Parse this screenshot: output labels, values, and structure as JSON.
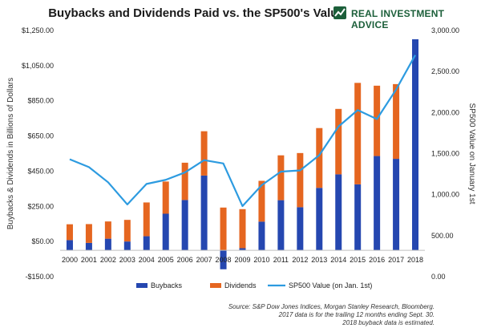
{
  "header": {
    "title": "Buybacks and Dividends Paid vs. the SP500's Value",
    "brand": "REAL INVESTMENT ADVICE",
    "brand_color": "#1c5f3a"
  },
  "source": {
    "line1": "Source: S&P Dow Jones Indices, Morgan Stanley Research, Bloomberg.",
    "line2": "2017 data is for the trailing 12 months ending Sept. 30.",
    "line3": "2018 buyback data is estimated."
  },
  "chart_data": {
    "type": "bar",
    "stacked": true,
    "categories": [
      "2000",
      "2001",
      "2002",
      "2003",
      "2004",
      "2005",
      "2006",
      "2007",
      "2008",
      "2009",
      "2010",
      "2011",
      "2012",
      "2013",
      "2014",
      "2015",
      "2016",
      "2017",
      "2018"
    ],
    "series": [
      {
        "name": "Buybacks",
        "color": "#2547b0",
        "values": [
          58,
          42,
          66,
          50,
          80,
          208,
          286,
          425,
          -108,
          12,
          163,
          285,
          245,
          355,
          432,
          375,
          536,
          520,
          1200
        ]
      },
      {
        "name": "Dividends",
        "color": "#e56620",
        "values": [
          90,
          107,
          98,
          123,
          192,
          183,
          212,
          252,
          243,
          222,
          232,
          255,
          308,
          340,
          372,
          577,
          400,
          425,
          0
        ]
      },
      {
        "name": "SP500 Value (on Jan. 1st)",
        "color": "#2d9be0",
        "axis": "right",
        "type": "line",
        "values": [
          1430,
          1335,
          1150,
          880,
          1130,
          1180,
          1270,
          1420,
          1380,
          860,
          1115,
          1280,
          1295,
          1480,
          1830,
          2030,
          1920,
          2280,
          2700
        ]
      }
    ],
    "ylabel": "Buybacks & Dividends in Billions of Dollars",
    "y2label": "SP500 Value on January 1st",
    "ylim": [
      -150,
      1250
    ],
    "yticks": [
      -150,
      50,
      250,
      450,
      650,
      850,
      1050,
      1250
    ],
    "ytick_labels": [
      "-$150.00",
      "$50.00",
      "$250.00",
      "$450.00",
      "$650.00",
      "$850.00",
      "$1,050.00",
      "$1,250.00"
    ],
    "y2lim": [
      0,
      3000
    ],
    "y2ticks": [
      0,
      500,
      1000,
      1500,
      2000,
      2500,
      3000
    ],
    "y2tick_labels": [
      "0.00",
      "500.00",
      "1,000.00",
      "1,500.00",
      "2,000.00",
      "2,500.00",
      "3,000.00"
    ],
    "grid": false,
    "legend": "bottom"
  }
}
